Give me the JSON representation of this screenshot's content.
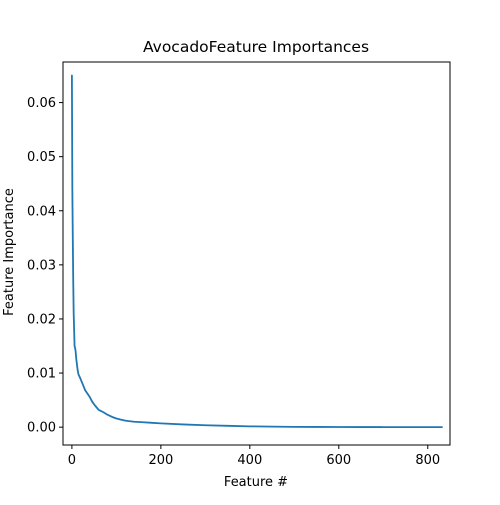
{
  "chart_data": {
    "type": "line",
    "title": "AvocadoFeature Importances",
    "xlabel": "Feature #",
    "ylabel": "Feature Importance",
    "xlim": [
      -20,
      850
    ],
    "ylim": [
      -0.0033,
      0.0675
    ],
    "grid": false,
    "xticks": [
      0,
      200,
      400,
      600,
      800
    ],
    "yticks": [
      0.0,
      0.01,
      0.02,
      0.03,
      0.04,
      0.05,
      0.06
    ],
    "xtick_labels": [
      "0",
      "200",
      "400",
      "600",
      "800"
    ],
    "ytick_labels": [
      "0.00",
      "0.01",
      "0.02",
      "0.03",
      "0.04",
      "0.05",
      "0.06"
    ],
    "series": [
      {
        "color": "#1f77b4",
        "x": [
          0,
          1,
          2,
          3,
          4,
          6,
          8,
          10,
          13,
          15,
          18,
          20,
          25,
          30,
          35,
          40,
          45,
          50,
          55,
          60,
          65,
          70,
          80,
          90,
          100,
          110,
          120,
          140,
          160,
          180,
          200,
          250,
          300,
          350,
          400,
          450,
          500,
          550,
          600,
          650,
          700,
          750,
          800,
          832
        ],
        "values": [
          0.065,
          0.044,
          0.035,
          0.027,
          0.021,
          0.015,
          0.0143,
          0.0125,
          0.0105,
          0.0097,
          0.0092,
          0.0088,
          0.0078,
          0.0068,
          0.0062,
          0.0056,
          0.0048,
          0.0042,
          0.0037,
          0.0032,
          0.003,
          0.0028,
          0.0023,
          0.0019,
          0.0016,
          0.0014,
          0.0012,
          0.001,
          0.0009,
          0.0008,
          0.0007,
          0.0005,
          0.00035,
          0.00025,
          0.00015,
          0.0001,
          5e-05,
          4e-05,
          3e-05,
          2e-05,
          1e-05,
          5e-06,
          2e-06,
          0.0
        ]
      }
    ]
  }
}
